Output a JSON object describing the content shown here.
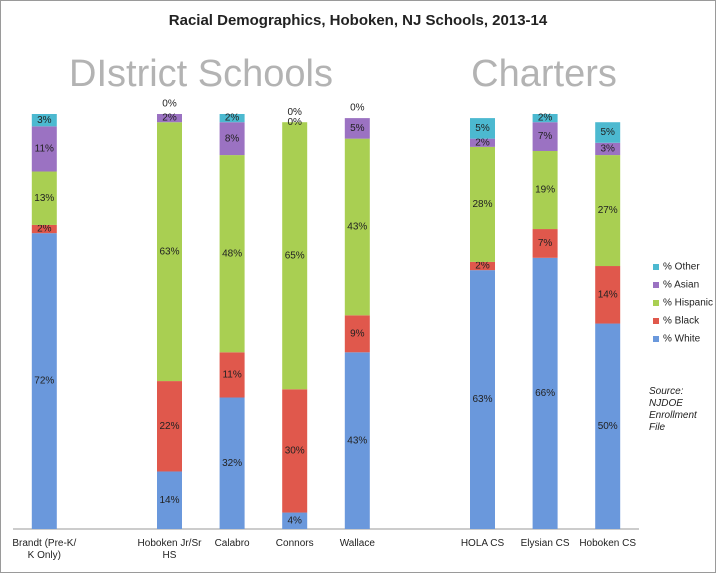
{
  "chart_data": {
    "type": "stacked_bar",
    "title": "Racial Demographics, Hoboken, NJ Schools, 2013-14",
    "annotations": [
      "DIstrict Schools",
      "Charters",
      "Source: NJDOE Enrollment File"
    ],
    "categories": [
      "Brandt (Pre-K/ K Only)",
      null,
      "Hoboken Jr/Sr HS",
      "Calabro",
      "Connors",
      "Wallace",
      null,
      "HOLA CS",
      "Elysian CS",
      "Hoboken CS"
    ],
    "series": [
      {
        "name": "% White",
        "color": "#6a98dc",
        "values": [
          72,
          null,
          14,
          32,
          4,
          43,
          null,
          63,
          66,
          50
        ],
        "value_labels": [
          "72%",
          null,
          "14%",
          "32%",
          "4%",
          "43%",
          null,
          "63%",
          "66%",
          "50%"
        ]
      },
      {
        "name": "% Black",
        "color": "#e0584c",
        "values": [
          2,
          null,
          22,
          11,
          30,
          9,
          null,
          2,
          7,
          14
        ],
        "value_labels": [
          "2%",
          null,
          "22%",
          "11%",
          "30%",
          "9%",
          null,
          "2%",
          "7%",
          "14%"
        ]
      },
      {
        "name": "% Hispanic",
        "color": "#a9cf52",
        "values": [
          13,
          null,
          63,
          48,
          65,
          43,
          null,
          28,
          19,
          27
        ],
        "value_labels": [
          "13%",
          null,
          "63%",
          "48%",
          "65%",
          "43%",
          null,
          "28%",
          "19%",
          "27%"
        ]
      },
      {
        "name": "% Asian",
        "color": "#9b72c2",
        "values": [
          11,
          null,
          2,
          8,
          0,
          5,
          null,
          2,
          7,
          3
        ],
        "value_labels": [
          "11%",
          null,
          "2%",
          "8%",
          "0%",
          "5%",
          null,
          "2%",
          "7%",
          "3%"
        ]
      },
      {
        "name": "% Other",
        "color": "#4cb9d0",
        "values": [
          3,
          null,
          0,
          2,
          0,
          0,
          null,
          5,
          2,
          5
        ],
        "value_labels": [
          "3%",
          null,
          "0%",
          "2%",
          "0%",
          "0%",
          null,
          "5%",
          "2%",
          "5%"
        ]
      }
    ]
  }
}
